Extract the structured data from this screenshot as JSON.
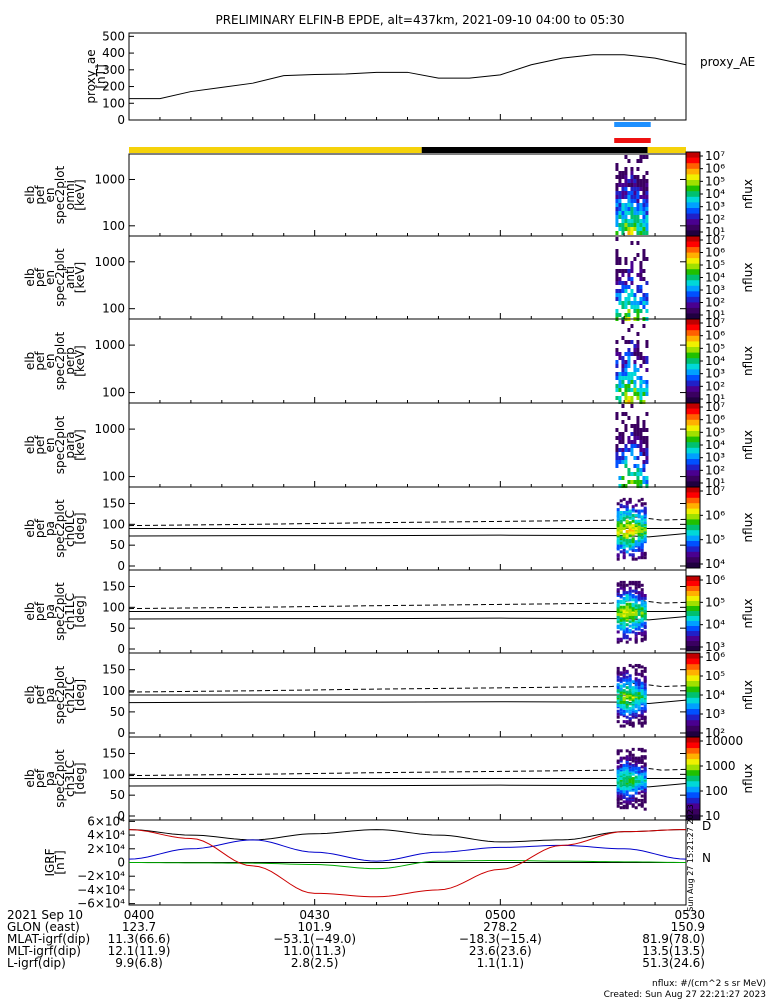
{
  "title": "PRELIMINARY ELFIN-B EPDE, alt=437km, 2021-09-10 04:00 to 05:30",
  "proxy_ae": {
    "ylabel": "proxy_ae\n[nT]",
    "legend": "proxy_AE",
    "ylim": [
      0,
      520
    ],
    "yticks": [
      "500",
      "400",
      "300",
      "200",
      "100",
      "0"
    ],
    "x": [
      0,
      5,
      10,
      15,
      20,
      25,
      30,
      35,
      40,
      45,
      50,
      55,
      60,
      65,
      70,
      75,
      80,
      85,
      90
    ],
    "y": [
      128,
      128,
      170,
      195,
      220,
      265,
      272,
      275,
      285,
      285,
      250,
      250,
      270,
      330,
      370,
      390,
      390,
      370,
      330
    ]
  },
  "bars": {
    "blue_color": "#1e90ff",
    "red_color": "#ee1111",
    "state_colors": [
      "#f5d20a",
      "#000000",
      "#f5d20a"
    ]
  },
  "energy_panels": [
    {
      "label": "elb\npef\nen\nspec2plot\nomni\n[keV]",
      "yticks": [
        "1000",
        "100"
      ]
    },
    {
      "label": "elb\npef\nen\nspec2plot\nanti\n[keV]",
      "yticks": [
        "1000",
        "100"
      ]
    },
    {
      "label": "elb\npef\nen\nspec2plot\nperp\n[keV]",
      "yticks": [
        "1000",
        "100"
      ]
    },
    {
      "label": "elb\npef\nen\nspec2plot\npara\n[keV]",
      "yticks": [
        "1000",
        "100"
      ]
    }
  ],
  "pa_panels": [
    {
      "label": "elb\npef\npa\nspec2plot\nch0LC\n[deg]",
      "yticks": [
        "150",
        "100",
        "50",
        "0"
      ]
    },
    {
      "label": "elb\npef\npa\nspec2plot\nch1LC\n[deg]",
      "yticks": [
        "150",
        "100",
        "50",
        "0"
      ]
    },
    {
      "label": "elb\npef\npa\nspec2plot\nch2LC\n[deg]",
      "yticks": [
        "150",
        "100",
        "50",
        "0"
      ]
    },
    {
      "label": "elb\npef\npa\nspec2plot\nch3LC\n[deg]",
      "yticks": [
        "150",
        "100",
        "50",
        "0"
      ]
    }
  ],
  "colorbars": [
    {
      "label": "nflux",
      "ticks": [
        "10⁷",
        "10⁶",
        "10⁵",
        "10⁴",
        "10³",
        "10²",
        "10¹"
      ]
    },
    {
      "label": "nflux",
      "ticks": [
        "10⁷",
        "10⁶",
        "10⁵",
        "10⁴",
        "10³",
        "10²",
        "10¹"
      ]
    },
    {
      "label": "nflux",
      "ticks": [
        "10⁷",
        "10⁶",
        "10⁵",
        "10⁴",
        "10³",
        "10²",
        "10¹"
      ]
    },
    {
      "label": "nflux",
      "ticks": [
        "10⁷",
        "10⁶",
        "10⁵",
        "10⁴",
        "10³",
        "10²",
        "10¹"
      ]
    },
    {
      "label": "nflux",
      "ticks": [
        "10⁷",
        "10⁶",
        "10⁵",
        "10⁴"
      ]
    },
    {
      "label": "nflux",
      "ticks": [
        "10⁶",
        "10⁵",
        "10⁴",
        "10³"
      ]
    },
    {
      "label": "nflux",
      "ticks": [
        "10⁶",
        "10⁵",
        "10⁴",
        "10³",
        "10²"
      ]
    },
    {
      "label": "nflux",
      "ticks": [
        "10000",
        "1000",
        "100",
        "10"
      ]
    }
  ],
  "igrf": {
    "ylabel": "IGRF\n[nT]",
    "yticks": [
      "6×10⁴",
      "4×10⁴",
      "2×10⁴",
      "0",
      "−2×10⁴",
      "−4×10⁴",
      "−6×10⁴"
    ],
    "side_labels": [
      "D",
      "N"
    ],
    "side_label_colors": [
      "#dd0000",
      "#00aa00"
    ],
    "created_vertical": "Sun Aug 27 15:21:27 2023"
  },
  "footer": {
    "row_labels": [
      "2021 Sep 10",
      "GLON (east)",
      "MLAT-igrf(dip)",
      "MLT-igrf(dip)",
      "L-igrf(dip)"
    ],
    "columns": [
      {
        "time": "0400",
        "values": [
          "123.7",
          "11.3(66.6)",
          "12.1(11.9)",
          "9.9(6.8)"
        ]
      },
      {
        "time": "0430",
        "values": [
          "101.9",
          "−53.1(−49.0)",
          "11.0(11.3)",
          "2.8(2.5)"
        ]
      },
      {
        "time": "0500",
        "values": [
          "278.2",
          "−18.3(−15.4)",
          "23.6(23.6)",
          "1.1(1.1)"
        ]
      },
      {
        "time": "0530",
        "values": [
          "150.9",
          "81.9(78.0)",
          "13.5(13.5)",
          "51.3(24.6)"
        ]
      }
    ],
    "units_note": "nflux: #/(cm^2 s sr MeV)",
    "created": "Created: Sun Aug 27 22:21:27 2023"
  },
  "chart_data": [
    {
      "type": "line",
      "title": "PRELIMINARY ELFIN-B EPDE, alt=437km, 2021-09-10 04:00 to 05:30",
      "ylabel": "proxy_ae [nT]",
      "xlabel": "",
      "x_minutes_after_0400": [
        0,
        5,
        10,
        15,
        20,
        25,
        30,
        35,
        40,
        45,
        50,
        55,
        60,
        65,
        70,
        75,
        80,
        85,
        90
      ],
      "series": [
        {
          "name": "proxy_AE",
          "values": [
            128,
            128,
            170,
            195,
            220,
            265,
            272,
            275,
            285,
            285,
            250,
            250,
            270,
            330,
            370,
            390,
            390,
            370,
            330
          ]
        }
      ],
      "ylim": [
        0,
        520
      ]
    },
    {
      "type": "heatmap",
      "panels": [
        "omni",
        "anti",
        "perp",
        "para"
      ],
      "ylabel": "keV",
      "yscale": "log",
      "colorbar": "nflux",
      "active_interval_minutes": [
        78,
        84
      ]
    },
    {
      "type": "heatmap",
      "panels": [
        "ch0LC",
        "ch1LC",
        "ch2LC",
        "ch3LC"
      ],
      "ylabel": "deg",
      "ylim": [
        0,
        180
      ],
      "colorbar": "nflux"
    },
    {
      "type": "line",
      "ylabel": "IGRF [nT]",
      "ylim": [
        -60000,
        60000
      ],
      "x_minutes_after_0400": [
        0,
        10,
        20,
        30,
        40,
        50,
        60,
        70,
        80,
        90
      ],
      "series": [
        {
          "name": "",
          "color": "#000000",
          "values": [
            48000,
            40000,
            33000,
            42000,
            48000,
            40000,
            30000,
            33000,
            45000,
            48000
          ]
        },
        {
          "name": "",
          "color": "#0000cc",
          "values": [
            5000,
            20000,
            33000,
            15000,
            2000,
            15000,
            22000,
            25000,
            20000,
            5000
          ]
        },
        {
          "name": "",
          "color": "#00aa00",
          "values": [
            0,
            -500,
            -1000,
            -3000,
            -9000,
            2000,
            3000,
            2000,
            1000,
            0
          ]
        },
        {
          "name": "",
          "color": "#cc0000",
          "values": [
            48000,
            35000,
            -5000,
            -45000,
            -50000,
            -40000,
            -10000,
            25000,
            45000,
            48000
          ]
        }
      ]
    }
  ]
}
